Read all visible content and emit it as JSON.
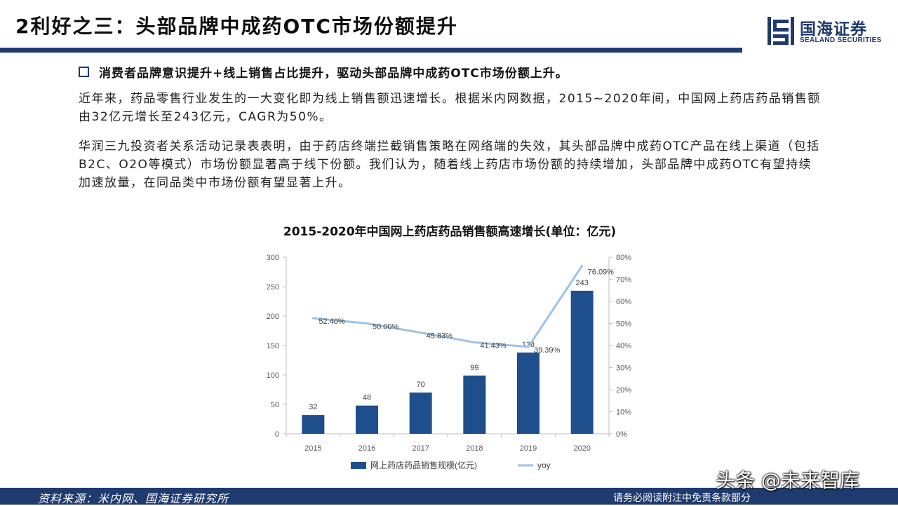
{
  "header": {
    "title": "2利好之三：头部品牌中成药OTC市场份额提升",
    "logo_cn": "国海证券",
    "logo_en": "SEALAND SECURITIES",
    "logo_icon": "sealand-logo-icon",
    "accent": "#1f3a6e"
  },
  "bullet": {
    "icon": "square-bullet-icon",
    "text": "消费者品牌意识提升+线上销售占比提升，驱动头部品牌中成药OTC市场份额上升。"
  },
  "paragraphs": [
    "近年来，药品零售行业发生的一大变化即为线上销售额迅速增长。根据米内网数据，2015~2020年间，中国网上药店药品销售额由32亿元增长至243亿元，CAGR为50%。",
    "华润三九投资者关系活动记录表表明，由于药店终端拦截销售策略在网络端的失效，其头部品牌中成药OTC产品在线上渠道（包括B2C、O2O等模式）市场份额显著高于线下份额。我们认为，随着线上药店市场份额的持续增加，头部品牌中成药OTC有望持续加速放量，在同品类中市场份额有望显著上升。"
  ],
  "chart_data": {
    "type": "bar",
    "title": "2015-2020年中国网上药店药品销售额高速增长(单位：亿元)",
    "categories": [
      "2015",
      "2016",
      "2017",
      "2018",
      "2019",
      "2020"
    ],
    "series": [
      {
        "name": "网上药店药品销售规模(亿元)",
        "type": "bar",
        "axis": "left",
        "color": "#1f4e8c",
        "values": [
          32,
          48,
          70,
          99,
          138,
          243
        ],
        "labels": [
          "32",
          "48",
          "70",
          "99",
          "138",
          "243"
        ]
      },
      {
        "name": "yoy",
        "type": "line",
        "axis": "right",
        "color": "#9dc3e6",
        "values": [
          0.524,
          0.5,
          0.4583,
          0.4143,
          0.3939,
          0.7609
        ],
        "labels": [
          "52.40%",
          "50.00%",
          "45.83%",
          "41.43%",
          "39.39%",
          "76.09%"
        ]
      }
    ],
    "y_left": {
      "min": 0,
      "max": 300,
      "ticks": [
        0,
        50,
        100,
        150,
        200,
        250,
        300
      ],
      "tick_labels": [
        "0",
        "50",
        "100",
        "150",
        "200",
        "250",
        "300"
      ]
    },
    "y_right": {
      "min": 0,
      "max": 0.8,
      "ticks": [
        0,
        0.1,
        0.2,
        0.3,
        0.4,
        0.5,
        0.6,
        0.7,
        0.8
      ],
      "tick_labels": [
        "0%",
        "10%",
        "20%",
        "30%",
        "40%",
        "50%",
        "60%",
        "70%",
        "80%"
      ]
    },
    "legend": "bottom",
    "grid": false
  },
  "footer": {
    "source": "资料来源：米内网、国海证券研究所",
    "disclaimer": "请务必阅读附注中免责条款部分",
    "watermark": "头条 @未来智库"
  }
}
